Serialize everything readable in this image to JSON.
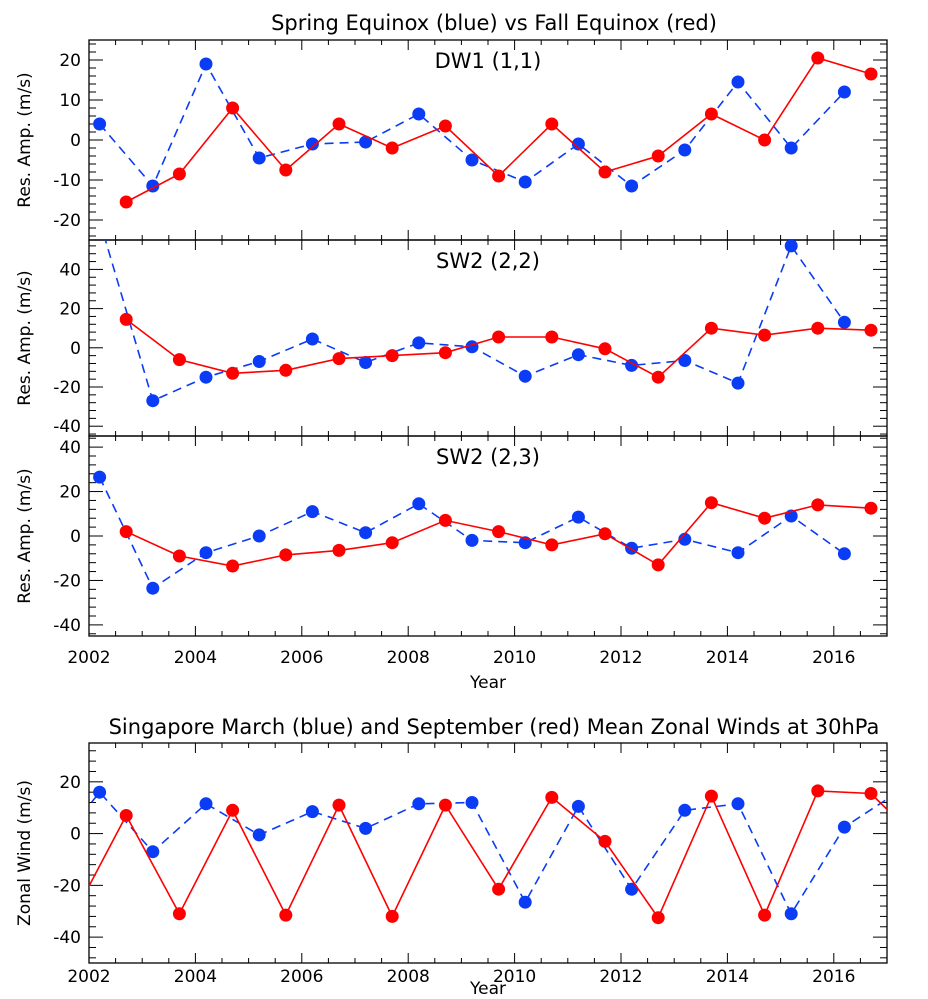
{
  "titles": {
    "top": "Spring Equinox (blue) vs Fall Equinox (red)",
    "bottom": "Singapore March (blue) and September (red) Mean Zonal Winds at 30hPa"
  },
  "colors": {
    "blue": "#0a3cf5",
    "red": "#ff0000"
  },
  "chart_data": [
    {
      "type": "line",
      "panel_label": "DW1 (1,1)",
      "ylabel": "Res. Amp. (m/s)",
      "xlabel": "",
      "xlim": [
        2002,
        2017
      ],
      "ylim": [
        -25,
        25
      ],
      "yticks": [
        -20,
        -10,
        0,
        10,
        20
      ],
      "series": [
        {
          "color": "blue",
          "style": "dashed",
          "x": [
            2002.2,
            2003.2,
            2004.2,
            2005.2,
            2006.2,
            2007.2,
            2008.2,
            2009.2,
            2010.2,
            2011.2,
            2012.2,
            2013.2,
            2014.2,
            2015.2,
            2016.2
          ],
          "y": [
            4,
            -11.5,
            19,
            -4.5,
            -1,
            -0.5,
            6.5,
            -5,
            -10.5,
            -1,
            -11.5,
            -2.5,
            14.5,
            -2,
            12
          ]
        },
        {
          "color": "red",
          "style": "solid",
          "x": [
            2002.7,
            2003.7,
            2004.7,
            2005.7,
            2006.7,
            2007.7,
            2008.7,
            2009.7,
            2010.7,
            2011.7,
            2012.7,
            2013.7,
            2014.7,
            2015.7,
            2016.7
          ],
          "y": [
            -15.5,
            -8.5,
            8,
            -7.5,
            4,
            -2,
            3.5,
            -9,
            4,
            -8,
            -4,
            6.5,
            0,
            20.5,
            16.5
          ]
        }
      ]
    },
    {
      "type": "line",
      "panel_label": "SW2 (2,2)",
      "ylabel": "Res. Amp. (m/s)",
      "xlabel": "",
      "xlim": [
        2002,
        2017
      ],
      "ylim": [
        -45,
        55
      ],
      "yticks": [
        -40,
        -20,
        0,
        20,
        40
      ],
      "series": [
        {
          "color": "blue",
          "style": "dashed",
          "x": [
            2002.2,
            2003.2,
            2004.2,
            2005.2,
            2006.2,
            2007.2,
            2008.2,
            2009.2,
            2010.2,
            2011.2,
            2012.2,
            2013.2,
            2014.2,
            2015.2,
            2016.2
          ],
          "y": [
            65,
            -27,
            -15,
            -7,
            4.5,
            -7.5,
            2.5,
            0.5,
            -14.5,
            -3.5,
            -9,
            -6.5,
            -18,
            52,
            13
          ]
        },
        {
          "color": "red",
          "style": "solid",
          "x": [
            2002.7,
            2003.7,
            2004.7,
            2005.7,
            2006.7,
            2007.7,
            2008.7,
            2009.7,
            2010.7,
            2011.7,
            2012.7,
            2013.7,
            2014.7,
            2015.7,
            2016.7
          ],
          "y": [
            14.5,
            -6,
            -13,
            -11.5,
            -5.5,
            -4,
            -2.5,
            5.5,
            5.5,
            -0.5,
            -15,
            10,
            6.5,
            10,
            9
          ]
        }
      ]
    },
    {
      "type": "line",
      "panel_label": "SW2 (2,3)",
      "ylabel": "Res. Amp. (m/s)",
      "xlabel": "Year",
      "xlim": [
        2002,
        2017
      ],
      "ylim": [
        -45,
        45
      ],
      "yticks": [
        -40,
        -20,
        0,
        20,
        40
      ],
      "xticks": [
        2002,
        2004,
        2006,
        2008,
        2010,
        2012,
        2014,
        2016
      ],
      "series": [
        {
          "color": "blue",
          "style": "dashed",
          "x": [
            2002.2,
            2003.2,
            2004.2,
            2005.2,
            2006.2,
            2007.2,
            2008.2,
            2009.2,
            2010.2,
            2011.2,
            2012.2,
            2013.2,
            2014.2,
            2015.2,
            2016.2
          ],
          "y": [
            26.5,
            -23.5,
            -7.5,
            0,
            11,
            1.5,
            14.5,
            -2,
            -3,
            8.5,
            -5.5,
            -1.5,
            -7.5,
            9,
            -8
          ]
        },
        {
          "color": "red",
          "style": "solid",
          "x": [
            2002.7,
            2003.7,
            2004.7,
            2005.7,
            2006.7,
            2007.7,
            2008.7,
            2009.7,
            2010.7,
            2011.7,
            2012.7,
            2013.7,
            2014.7,
            2015.7,
            2016.7
          ],
          "y": [
            2,
            -9,
            -13.5,
            -8.5,
            -6.5,
            -3,
            7,
            2,
            -4,
            1,
            -13,
            15,
            8,
            14,
            12.5
          ]
        }
      ]
    },
    {
      "type": "line",
      "panel_label": "",
      "ylabel": "Zonal Wind (m/s)",
      "xlabel": "Year",
      "xlim": [
        2002,
        2017
      ],
      "ylim": [
        -50,
        35
      ],
      "yticks": [
        -40,
        -20,
        0,
        20
      ],
      "xticks": [
        2002,
        2004,
        2006,
        2008,
        2010,
        2012,
        2014,
        2016
      ],
      "series": [
        {
          "color": "blue",
          "style": "dashed",
          "x": [
            2001.7,
            2002.2,
            2003.2,
            2004.2,
            2005.2,
            2006.2,
            2007.2,
            2008.2,
            2009.2,
            2010.2,
            2011.2,
            2012.2,
            2013.2,
            2014.2,
            2015.2,
            2016.2,
            2017.2
          ],
          "y": [
            3,
            16,
            -7,
            11.5,
            -0.5,
            8.5,
            2,
            11.5,
            12,
            -26.5,
            10.5,
            -21.5,
            9,
            11.5,
            -31,
            2.5,
            16
          ],
          "markers": [
            false,
            true,
            true,
            true,
            true,
            true,
            true,
            true,
            true,
            true,
            true,
            true,
            true,
            true,
            true,
            true,
            false
          ]
        },
        {
          "color": "red",
          "style": "solid",
          "x": [
            2001.7,
            2002.7,
            2003.7,
            2004.7,
            2005.7,
            2006.7,
            2007.7,
            2008.7,
            2009.7,
            2010.7,
            2011.7,
            2012.7,
            2013.7,
            2014.7,
            2015.7,
            2016.7,
            2017.7
          ],
          "y": [
            -32,
            7,
            -31,
            9,
            -31.5,
            11,
            -32,
            11,
            -21.5,
            14,
            -3,
            -32.5,
            14.5,
            -31.5,
            16.5,
            15.5,
            -5
          ],
          "markers": [
            false,
            true,
            true,
            true,
            true,
            true,
            true,
            true,
            true,
            true,
            true,
            true,
            true,
            true,
            true,
            true,
            false
          ]
        }
      ]
    }
  ]
}
